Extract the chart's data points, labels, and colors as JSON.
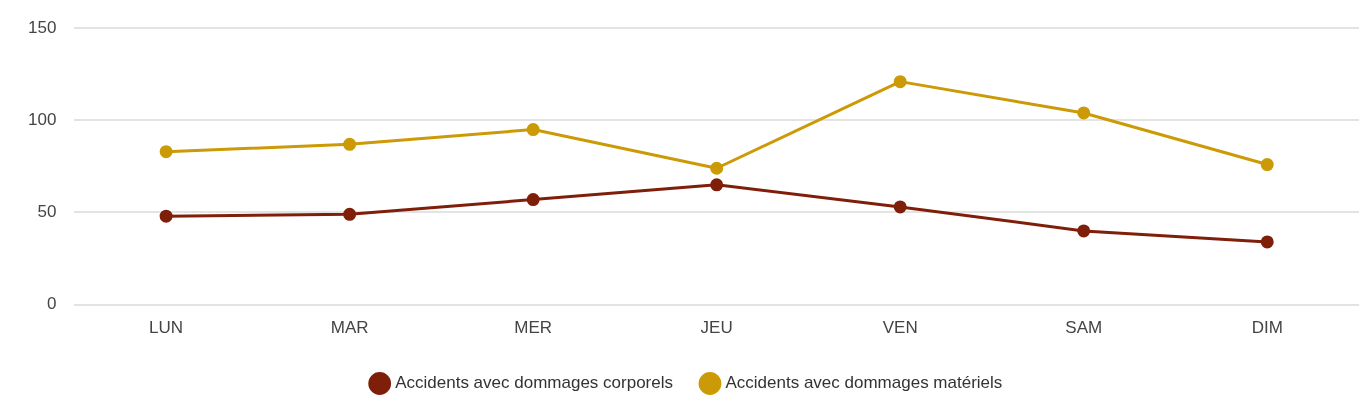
{
  "chart_data": {
    "type": "line",
    "categories": [
      "LUN",
      "MAR",
      "MER",
      "JEU",
      "VEN",
      "SAM",
      "DIM"
    ],
    "series": [
      {
        "name": "Accidents avec dommages corporels",
        "color": "#7f1f0a",
        "values": [
          48,
          49,
          57,
          65,
          53,
          40,
          34
        ]
      },
      {
        "name": "Accidents avec dommages matériels",
        "color": "#cc9a06",
        "values": [
          83,
          87,
          95,
          74,
          121,
          104,
          76
        ]
      }
    ],
    "ylim": [
      0,
      150
    ],
    "yticks": [
      0,
      50,
      100,
      150
    ],
    "grid": "y",
    "legend": "bottom",
    "marker": "circle",
    "line_style": "solid"
  }
}
